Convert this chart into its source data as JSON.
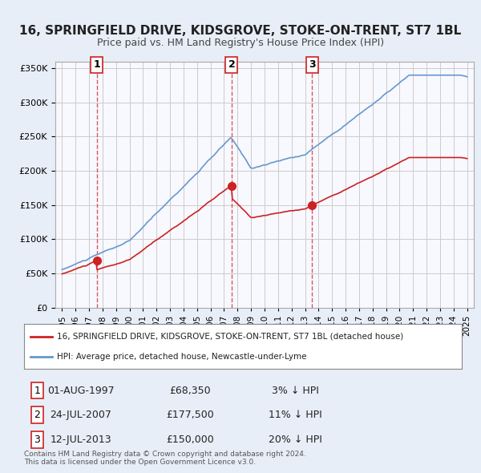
{
  "title": "16, SPRINGFIELD DRIVE, KIDSGROVE, STOKE-ON-TRENT, ST7 1BL",
  "subtitle": "Price paid vs. HM Land Registry's House Price Index (HPI)",
  "legend_line1": "16, SPRINGFIELD DRIVE, KIDSGROVE, STOKE-ON-TRENT, ST7 1BL (detached house)",
  "legend_line2": "HPI: Average price, detached house, Newcastle-under-Lyme",
  "transactions": [
    {
      "num": 1,
      "date": "01-AUG-1997",
      "year": 1997.58,
      "price": 68350,
      "pct": "3%",
      "dir": "↓"
    },
    {
      "num": 2,
      "date": "24-JUL-2007",
      "year": 2007.56,
      "price": 177500,
      "pct": "11%",
      "dir": "↓"
    },
    {
      "num": 3,
      "date": "12-JUL-2013",
      "year": 2013.53,
      "price": 150000,
      "pct": "20%",
      "dir": "↓"
    }
  ],
  "hpi_color": "#6699cc",
  "price_color": "#cc2222",
  "marker_color": "#cc2222",
  "vline_color": "#cc3333",
  "background_color": "#f0f4ff",
  "plot_bg": "#f8f8ff",
  "grid_color": "#cccccc",
  "ylim": [
    0,
    360000
  ],
  "yticks": [
    0,
    50000,
    100000,
    150000,
    200000,
    250000,
    300000,
    350000
  ],
  "xlim_start": 1994.5,
  "xlim_end": 2025.5,
  "footer": "Contains HM Land Registry data © Crown copyright and database right 2024.\nThis data is licensed under the Open Government Licence v3.0."
}
